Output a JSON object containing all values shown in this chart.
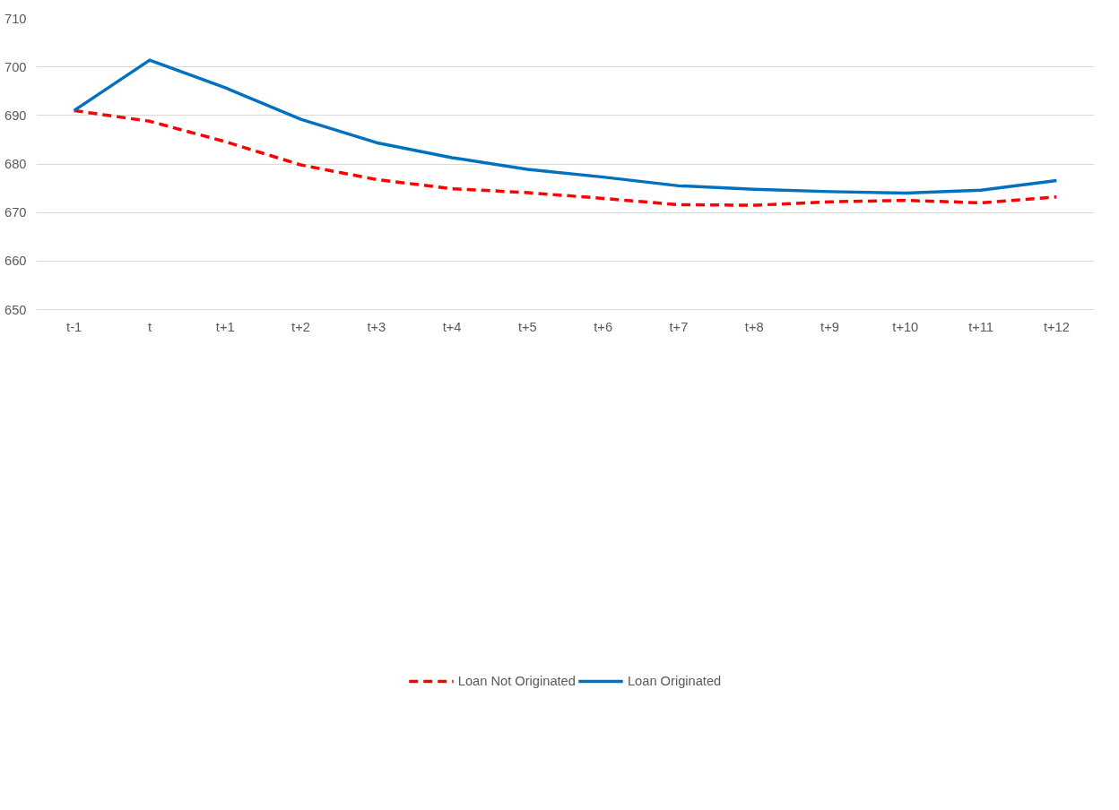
{
  "chart_data": {
    "type": "line",
    "categories": [
      "t-1",
      "t",
      "t+1",
      "t+2",
      "t+3",
      "t+4",
      "t+5",
      "t+6",
      "t+7",
      "t+8",
      "t+9",
      "t+10",
      "t+11",
      "t+12"
    ],
    "series": [
      {
        "name": "Loan Not Originated",
        "color": "#ff0000",
        "line_style": "dashed",
        "values": [
          691.0,
          688.8,
          684.6,
          679.8,
          676.8,
          674.9,
          674.1,
          672.9,
          671.6,
          671.5,
          672.2,
          672.5,
          672.0,
          673.2
        ]
      },
      {
        "name": "Loan Originated",
        "color": "#0070c0",
        "line_style": "solid",
        "values": [
          691.0,
          701.4,
          695.7,
          689.2,
          684.4,
          681.3,
          678.9,
          677.3,
          675.5,
          674.8,
          674.3,
          674.0,
          674.6,
          676.6
        ]
      }
    ],
    "ylim": [
      650,
      710
    ],
    "yticks": [
      650,
      660,
      670,
      680,
      690,
      700,
      710
    ],
    "grid": "y",
    "legend": "bottom",
    "marker": "none"
  }
}
